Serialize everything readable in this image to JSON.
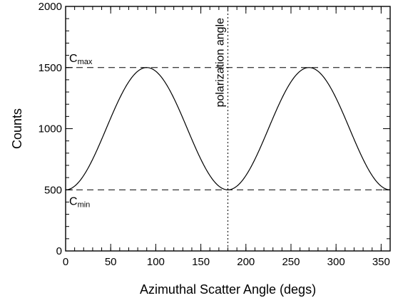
{
  "chart_data": {
    "type": "line",
    "xlabel": "Azimuthal Scatter Angle (degs)",
    "ylabel": "Counts",
    "xlim": [
      0,
      360
    ],
    "ylim": [
      0,
      2000
    ],
    "x_major_ticks": [
      0,
      50,
      100,
      150,
      200,
      250,
      300,
      350
    ],
    "x_minor_step": 10,
    "y_major_ticks": [
      0,
      500,
      1000,
      1500,
      2000
    ],
    "y_minor_step": 100,
    "grid": false,
    "series": [
      {
        "model": "1000 - 500*cos(2*x)",
        "x_range": [
          0,
          360
        ],
        "mean": 1000,
        "amplitude": 500,
        "minima_x": [
          0,
          180,
          360
        ],
        "maxima_x": [
          90,
          270
        ],
        "line_style": "solid",
        "color": "#000000"
      }
    ],
    "reference_lines": [
      {
        "orientation": "horizontal",
        "value": 1500,
        "style": "dashed",
        "label_base": "C",
        "label_sub": "max"
      },
      {
        "orientation": "horizontal",
        "value": 500,
        "style": "dashed",
        "label_base": "C",
        "label_sub": "min"
      },
      {
        "orientation": "vertical",
        "value": 180,
        "style": "dotted",
        "label": "polarization angle"
      }
    ]
  }
}
